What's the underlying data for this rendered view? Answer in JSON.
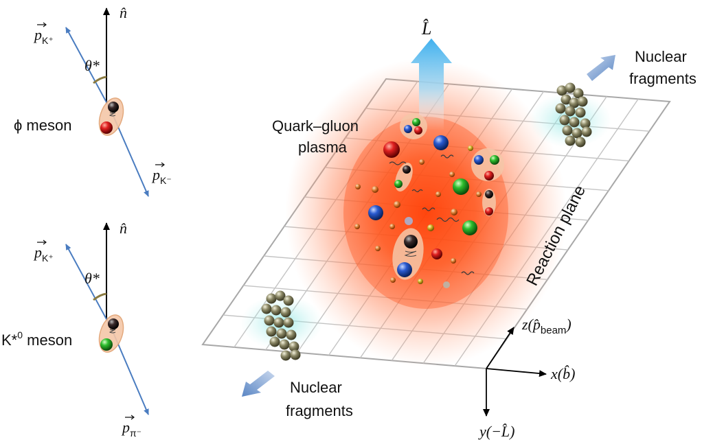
{
  "left_panel": {
    "phi": {
      "axis_label": "n̂",
      "angle_label": "θ*",
      "p_upper": {
        "base": "p",
        "sub": "K⁺"
      },
      "p_lower": {
        "base": "p",
        "sub": "K⁻"
      },
      "meson_label": "ϕ meson"
    },
    "kstar": {
      "axis_label": "n̂",
      "angle_label": "θ*",
      "p_upper": {
        "base": "p",
        "sub": "K⁺"
      },
      "p_lower": {
        "base": "p",
        "sub": "π⁻"
      },
      "meson_label_main": "K*",
      "meson_label_sup": "0",
      "meson_label_rest": " meson"
    }
  },
  "main": {
    "L_label": "L̂",
    "qgp_line1": "Quark–gluon",
    "qgp_line2": "plasma",
    "reaction_plane": "Reaction plane",
    "frag_top": [
      "Nuclear",
      "fragments"
    ],
    "frag_bottom": [
      "Nuclear",
      "fragments"
    ],
    "axes": {
      "z": {
        "pre": "z(",
        "p": "p̂",
        "sub": "beam",
        "post": ")"
      },
      "x": "x(b̂)",
      "y": "y(−L̂)"
    }
  },
  "colors": {
    "vector_blue": "#4a7cc0",
    "plane_grid": "#b0b0b0",
    "plasma_core": "#ff4a10",
    "L_arrow_top": "#3fb0ee",
    "frag_arrow": "#5a86c4",
    "quark_red": "#d81a1a",
    "quark_green": "#2ab52a",
    "quark_blue": "#2a5ad0",
    "nucleon": "#8b8866",
    "meson_halo": "#f4c7a8"
  }
}
